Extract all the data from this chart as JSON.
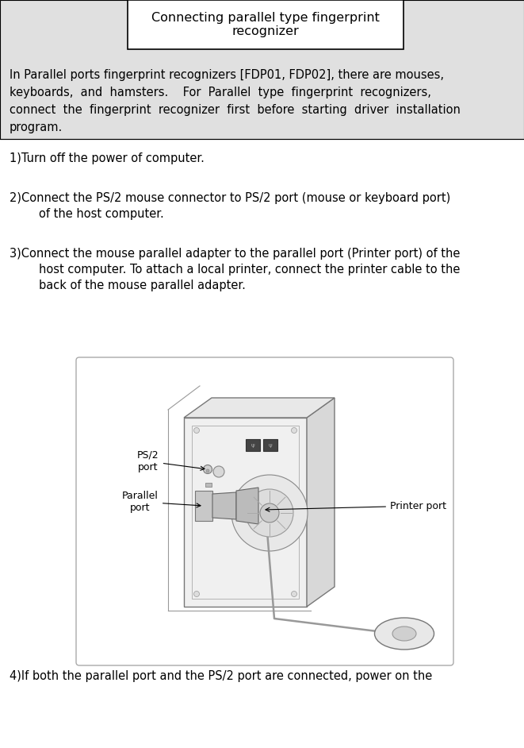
{
  "title": "Connecting parallel type fingerprint\nrecognizer",
  "bg_color": "#e0e0e0",
  "white": "#ffffff",
  "black": "#000000",
  "header_text_lines": [
    "In Parallel ports fingerprint recognizers [FDP01, FDP02], there are mouses,",
    "keyboards,  and  hamsters.    For  Parallel  type  fingerprint  recognizers,",
    "connect  the  fingerprint  recognizer  first  before  starting  driver  installation",
    "program."
  ],
  "step1": "1)Turn off the power of computer.",
  "step2_line1": "2)Connect the PS/2 mouse connector to PS/2 port (mouse or keyboard port)",
  "step2_line2": "        of the host computer.",
  "step3_line1": "3)Connect the mouse parallel adapter to the parallel port (Printer port) of the",
  "step3_line2": "        host computer. To attach a local printer, connect the printer cable to the",
  "step3_line3": "        back of the mouse parallel adapter.",
  "step4": "4)If both the parallel port and the PS/2 port are connected, power on the",
  "label_ps2": "PS/2\nport",
  "label_parallel": "Parallel\nport",
  "label_printer": "Printer port",
  "font_size_body": 10.5,
  "font_size_title": 11.5,
  "font_size_label": 9
}
